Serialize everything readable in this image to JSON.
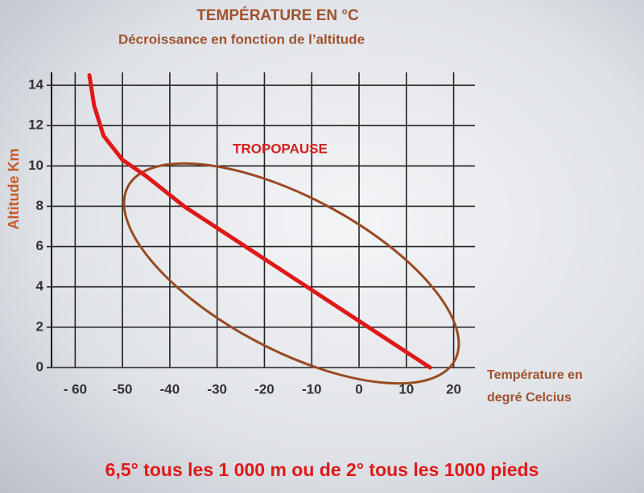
{
  "chart_data": {
    "type": "line",
    "title": "TEMPÉRATURE EN °C",
    "subtitle": "Décroissance en fonction de l’altitude",
    "y_label": "Altitude Km",
    "x_label": [
      "Température en",
      "degré Celcius"
    ],
    "annotation": "TROPOPAUSE",
    "caption": "6,5° tous les 1 000 m ou de 2° tous les 1000 pieds",
    "x": [
      15,
      2,
      -11,
      -24,
      -37,
      -45,
      -50,
      -54,
      -56,
      -57
    ],
    "series": [
      {
        "color": "#e01818",
        "values": [
          0,
          2,
          4,
          6,
          8,
          9.5,
          10.3,
          11.5,
          13,
          14.5
        ]
      }
    ],
    "xlim": [
      -65,
      24.5
    ],
    "ylim": [
      0,
      15
    ],
    "xticks": [
      {
        "value": -60,
        "label": "- 60"
      },
      -50,
      -40,
      -30,
      -20,
      -10,
      0,
      10,
      20
    ],
    "yticks": [
      0,
      2,
      4,
      6,
      8,
      10,
      12,
      14
    ],
    "grid": true
  }
}
